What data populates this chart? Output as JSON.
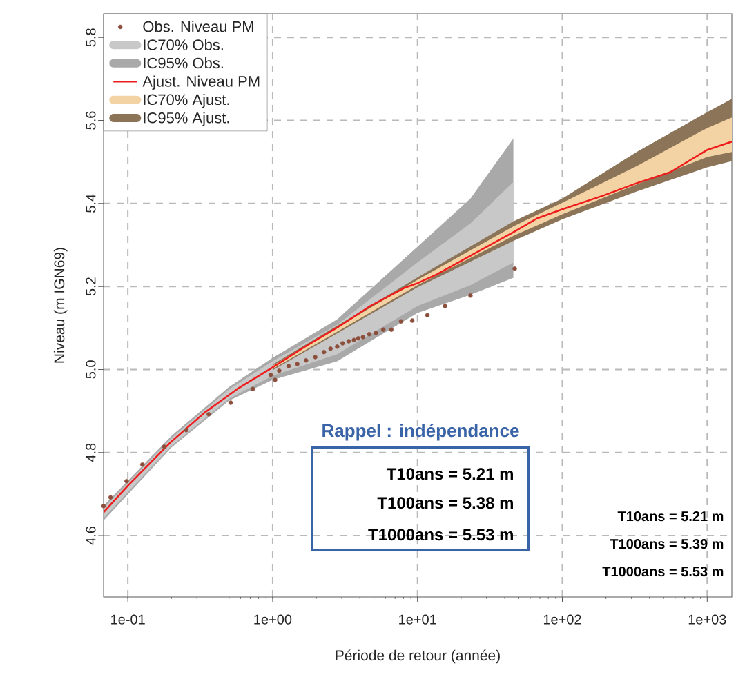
{
  "chart_data": {
    "type": "line",
    "xlabel": "Période de retour (année)",
    "ylabel": "Niveau (m IGN69)",
    "log": "x",
    "grid": true,
    "legend": "top left",
    "xlim": [
      0.068,
      1480
    ],
    "ylim": [
      4.452,
      5.857
    ],
    "xticks": [
      {
        "value": 0.1,
        "label": "1e-01"
      },
      {
        "value": 1,
        "label": "1e+00"
      },
      {
        "value": 10,
        "label": "1e+01"
      },
      {
        "value": 100,
        "label": "1e+02"
      },
      {
        "value": 1000,
        "label": "1e+03"
      }
    ],
    "yticks": [
      4.6,
      4.8,
      {
        "value": 5,
        "label": "5.0"
      },
      5.2,
      5.4,
      5.6,
      5.8
    ],
    "series": [
      {
        "name": "Obs. Niveau PM",
        "type": "scatter",
        "marker": "circle",
        "color": "#8c4f3c",
        "x": [
          0.068,
          0.076,
          0.098,
          0.126,
          0.178,
          0.253,
          0.362,
          0.513,
          0.73,
          0.97,
          1.04,
          1.11,
          1.29,
          1.48,
          1.7,
          1.97,
          2.26,
          2.51,
          2.79,
          3.04,
          3.35,
          3.64,
          3.9,
          4.2,
          4.64,
          5.16,
          5.8,
          6.6,
          7.7,
          9.2,
          11.7,
          15.5,
          23.2,
          46.9
        ],
        "values": [
          4.671,
          4.692,
          4.731,
          4.771,
          4.814,
          4.854,
          4.892,
          4.92,
          4.953,
          4.987,
          4.975,
          4.997,
          5.008,
          5.013,
          5.022,
          5.03,
          5.042,
          5.05,
          5.055,
          5.063,
          5.068,
          5.071,
          5.075,
          5.078,
          5.085,
          5.088,
          5.096,
          5.096,
          5.116,
          5.118,
          5.131,
          5.153,
          5.178,
          5.243
        ]
      },
      {
        "name": "IC70% Obs.",
        "type": "area",
        "color": "#c8c8c8",
        "x": [
          0.068,
          0.2,
          0.5,
          1,
          2.79,
          10,
          23.2,
          46
        ],
        "values": [
          null,
          null,
          null,
          null,
          null,
          null,
          null,
          null
        ],
        "lower": [
          4.642,
          4.816,
          4.93,
          4.985,
          5.037,
          5.153,
          5.203,
          5.258
        ],
        "upper": [
          4.666,
          4.835,
          4.952,
          5.02,
          5.108,
          5.258,
          5.352,
          5.452
        ]
      },
      {
        "name": "IC95% Obs.",
        "type": "area",
        "color": "#a9a9a9",
        "x": [
          0.068,
          0.2,
          0.5,
          1,
          2.79,
          10,
          23.2,
          46
        ],
        "values": [
          null,
          null,
          null,
          null,
          null,
          null,
          null,
          null
        ],
        "lower": [
          4.636,
          4.812,
          4.925,
          4.975,
          5.02,
          5.136,
          5.18,
          5.221
        ],
        "upper": [
          4.672,
          4.84,
          4.958,
          5.028,
          5.121,
          5.296,
          5.412,
          5.557
        ]
      },
      {
        "name": "Ajust. Niveau PM",
        "type": "line",
        "color": "#ee1c1c",
        "line_style": "solid",
        "x": [
          0.068,
          0.1,
          0.198,
          0.336,
          0.57,
          1,
          1.64,
          2.79,
          4.73,
          8.05,
          10,
          13.6,
          23.2,
          46,
          66.9,
          100,
          192,
          326,
          553,
          1000,
          1480
        ],
        "values": [
          4.656,
          4.72,
          4.825,
          4.895,
          4.953,
          5.005,
          5.053,
          5.101,
          5.153,
          5.196,
          5.208,
          5.229,
          5.274,
          5.331,
          5.364,
          5.386,
          5.419,
          5.449,
          5.475,
          5.529,
          5.549
        ]
      },
      {
        "name": "IC70% Ajust.",
        "type": "area",
        "color": "#f3d3a3",
        "x": [
          1,
          10,
          46,
          100,
          326,
          1000,
          1480
        ],
        "values": [
          null,
          null,
          null,
          null,
          null,
          null,
          null
        ],
        "lower": [
          5.001,
          5.203,
          5.322,
          5.374,
          5.446,
          5.512,
          5.524
        ],
        "upper": [
          5.009,
          5.216,
          5.345,
          5.402,
          5.49,
          5.582,
          5.607
        ]
      },
      {
        "name": "IC95% Ajust.",
        "type": "area",
        "color": "#8b7458",
        "x": [
          1,
          10,
          46,
          100,
          326,
          1000,
          1480
        ],
        "values": [
          null,
          null,
          null,
          null,
          null,
          null,
          null
        ],
        "lower": [
          4.998,
          5.198,
          5.31,
          5.362,
          5.429,
          5.487,
          5.502
        ],
        "upper": [
          5.012,
          5.222,
          5.357,
          5.412,
          5.524,
          5.62,
          5.652
        ]
      }
    ],
    "annotations": [
      "Rappel : indépendance",
      "T10ans =  5.21 m",
      "T100ans =  5.38 m",
      "T1000ans =  5.53 m",
      "T10ans =  5.21 m",
      "T100ans =  5.39 m",
      "T1000ans =  5.53 m"
    ]
  }
}
